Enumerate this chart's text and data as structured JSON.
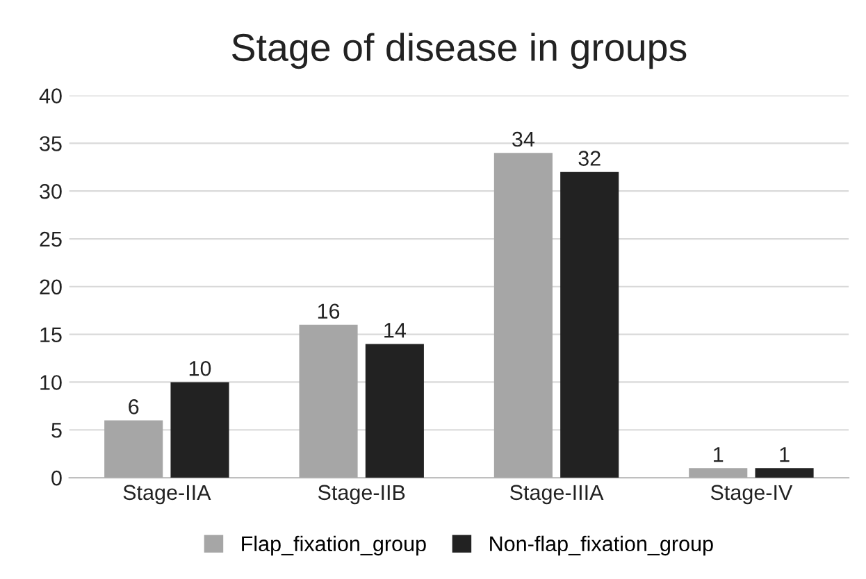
{
  "chart_data": {
    "type": "bar",
    "title": "Stage of disease in groups",
    "categories": [
      "Stage-IIA",
      "Stage-IIB",
      "Stage-IIIA",
      "Stage-IV"
    ],
    "series": [
      {
        "name": "Flap_fixation_group",
        "color": "#a6a6a6",
        "values": [
          6,
          16,
          34,
          1
        ]
      },
      {
        "name": "Non-flap_fixation_group",
        "color": "#222222",
        "values": [
          10,
          14,
          32,
          1
        ]
      }
    ],
    "ylim": [
      0,
      40
    ],
    "yticks": [
      0,
      5,
      10,
      15,
      20,
      25,
      30,
      35,
      40
    ],
    "grid": "y",
    "legend": "bottom",
    "data_labels": true
  }
}
